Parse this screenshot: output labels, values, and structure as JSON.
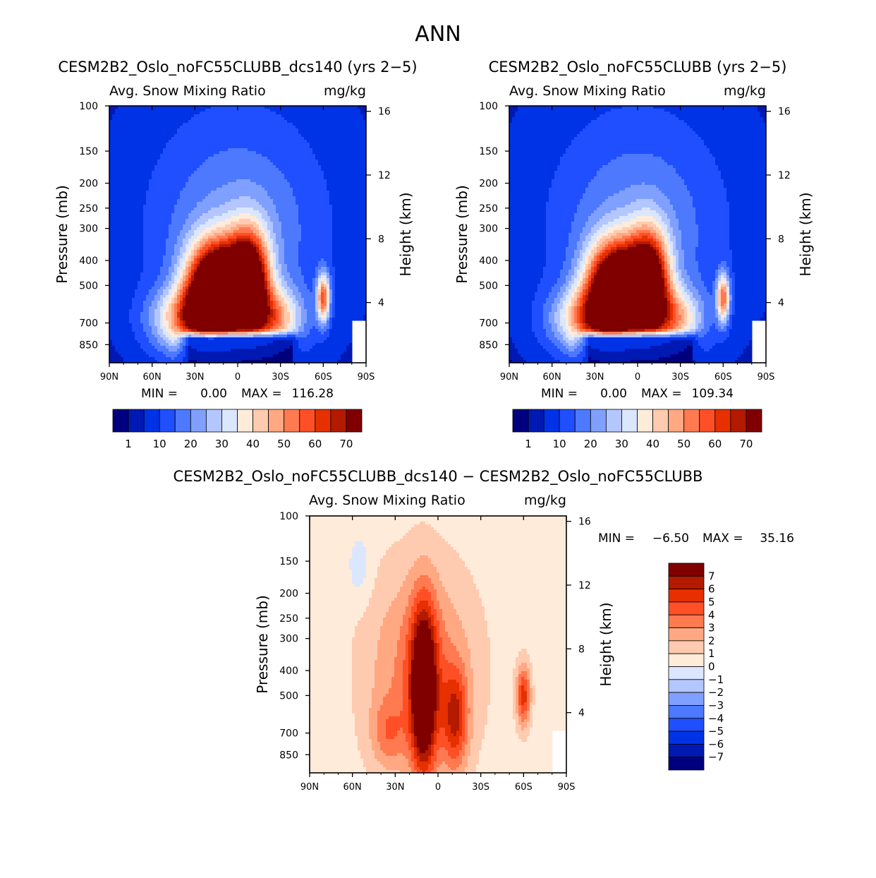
{
  "figure": {
    "title": "ANN"
  },
  "colors": {
    "positive_scale": [
      "#00007f",
      "#0019b3",
      "#0032e6",
      "#1f4fff",
      "#4d79ff",
      "#80a0ff",
      "#b3c6ff",
      "#dbe6ff",
      "#ffebd9",
      "#ffcbb0",
      "#ffa882",
      "#ff7a50",
      "#ff4f26",
      "#e63000",
      "#b31a00",
      "#800000"
    ],
    "diff_scale": [
      "#00007f",
      "#0019b3",
      "#0032e6",
      "#1f4fff",
      "#4d79ff",
      "#80a0ff",
      "#b3c6ff",
      "#dbe6ff",
      "#ffebd9",
      "#ffcbb0",
      "#ffa882",
      "#ff7a50",
      "#ff4f26",
      "#e63000",
      "#b31a00",
      "#800000"
    ]
  },
  "chart_data": [
    {
      "id": "panel-a",
      "type": "heatmap",
      "title": "CESM2B2_Oslo_noFC55CLUBB_dcs140 (yrs 2−5)",
      "left_label": "Avg. Snow Mixing Ratio",
      "right_label": "mg/kg",
      "xlabel": "",
      "ylabel": "Pressure (mb)",
      "ylabel_right": "Height (km)",
      "x_ticks": [
        "90N",
        "60N",
        "30N",
        "0",
        "30S",
        "60S",
        "90S"
      ],
      "y_ticks": [
        "100",
        "150",
        "200",
        "250",
        "300",
        "400",
        "500",
        "700",
        "850"
      ],
      "y_tick_values": [
        100,
        150,
        200,
        250,
        300,
        400,
        500,
        700,
        850
      ],
      "height_ticks": [
        "16",
        "12",
        "8",
        "4"
      ],
      "height_tick_values": [
        16,
        12,
        8,
        4
      ],
      "ylim": [
        100,
        1000
      ],
      "stats": {
        "min_label": "MIN =",
        "min_value": "0.00",
        "max_label": "MAX =",
        "max_value": "116.28"
      },
      "max_value": 116.28,
      "colorbar_labels": [
        "1",
        "10",
        "20",
        "30",
        "40",
        "50",
        "60",
        "70"
      ],
      "levels": [
        0.5,
        1,
        5,
        10,
        15,
        20,
        25,
        30,
        35,
        40,
        45,
        50,
        55,
        60,
        65,
        70
      ]
    },
    {
      "id": "panel-b",
      "type": "heatmap",
      "title": "CESM2B2_Oslo_noFC55CLUBB (yrs 2−5)",
      "left_label": "Avg. Snow Mixing Ratio",
      "right_label": "mg/kg",
      "xlabel": "",
      "ylabel": "Pressure (mb)",
      "ylabel_right": "Height (km)",
      "x_ticks": [
        "90N",
        "60N",
        "30N",
        "0",
        "30S",
        "60S",
        "90S"
      ],
      "y_ticks": [
        "100",
        "150",
        "200",
        "250",
        "300",
        "400",
        "500",
        "700",
        "850"
      ],
      "y_tick_values": [
        100,
        150,
        200,
        250,
        300,
        400,
        500,
        700,
        850
      ],
      "height_ticks": [
        "16",
        "12",
        "8",
        "4"
      ],
      "height_tick_values": [
        16,
        12,
        8,
        4
      ],
      "ylim": [
        100,
        1000
      ],
      "stats": {
        "min_label": "MIN =",
        "min_value": "0.00",
        "max_label": "MAX =",
        "max_value": "109.34"
      },
      "max_value": 109.34,
      "colorbar_labels": [
        "1",
        "10",
        "20",
        "30",
        "40",
        "50",
        "60",
        "70"
      ],
      "levels": [
        0.5,
        1,
        5,
        10,
        15,
        20,
        25,
        30,
        35,
        40,
        45,
        50,
        55,
        60,
        65,
        70
      ]
    },
    {
      "id": "panel-diff",
      "type": "heatmap",
      "title": "CESM2B2_Oslo_noFC55CLUBB_dcs140 − CESM2B2_Oslo_noFC55CLUBB",
      "left_label": "Avg. Snow Mixing Ratio",
      "right_label": "mg/kg",
      "xlabel": "",
      "ylabel": "Pressure (mb)",
      "ylabel_right": "Height (km)",
      "x_ticks": [
        "90N",
        "60N",
        "30N",
        "0",
        "30S",
        "60S",
        "90S"
      ],
      "y_ticks": [
        "100",
        "150",
        "200",
        "250",
        "300",
        "400",
        "500",
        "700",
        "850"
      ],
      "y_tick_values": [
        100,
        150,
        200,
        250,
        300,
        400,
        500,
        700,
        850
      ],
      "height_ticks": [
        "16",
        "12",
        "8",
        "4"
      ],
      "height_tick_values": [
        16,
        12,
        8,
        4
      ],
      "ylim": [
        100,
        1000
      ],
      "stats": {
        "min_label": "MIN =",
        "min_value": "−6.50",
        "max_label": "MAX =",
        "max_value": "35.16"
      },
      "min_value": -6.5,
      "max_value": 35.16,
      "colorbar_labels": [
        "7",
        "6",
        "5",
        "4",
        "3",
        "2",
        "1",
        "0",
        "−1",
        "−2",
        "−3",
        "−4",
        "−5",
        "−6",
        "−7"
      ],
      "levels": [
        -7,
        -6,
        -5,
        -4,
        -3,
        -2,
        -1,
        0,
        1,
        2,
        3,
        4,
        5,
        6,
        7
      ]
    }
  ]
}
